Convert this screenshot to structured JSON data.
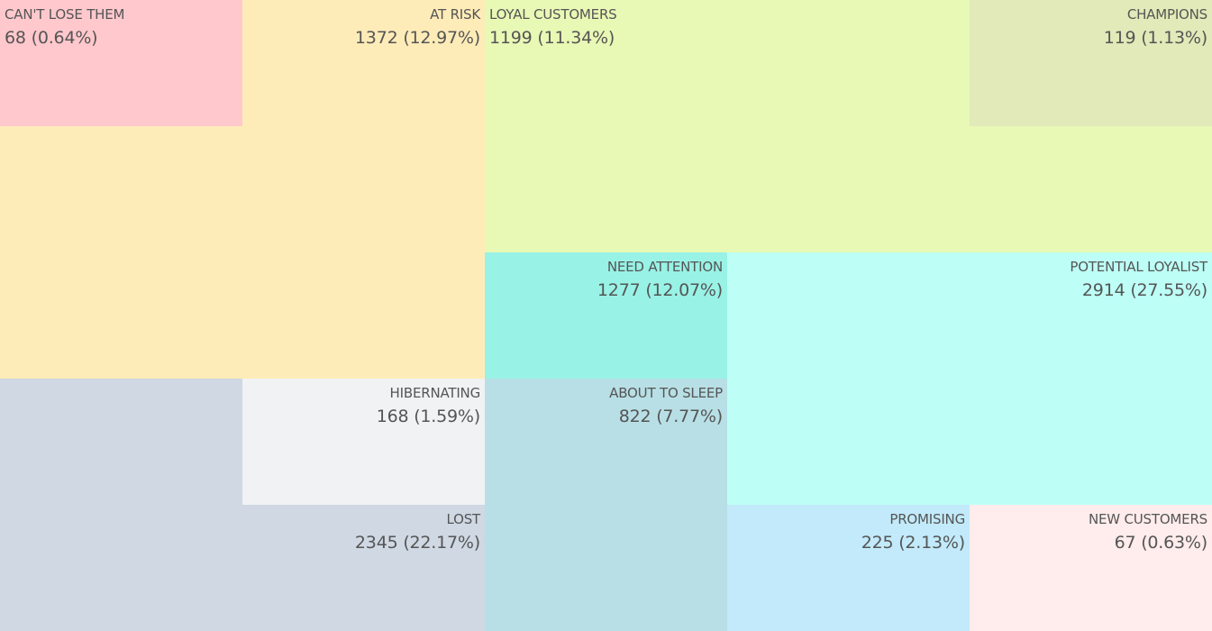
{
  "segments": [
    {
      "label": "CAN'T LOSE THEM",
      "value": "68 (0.64%)"
    },
    {
      "label": "AT RISK",
      "value": "1372 (12.97%)"
    },
    {
      "label": "LOYAL CUSTOMERS",
      "value": "1199 (11.34%)"
    },
    {
      "label": "CHAMPIONS",
      "value": "119 (1.13%)"
    },
    {
      "label": "NEED ATTENTION",
      "value": "1277 (12.07%)"
    },
    {
      "label": "POTENTIAL LOYALIST",
      "value": "2914 (27.55%)"
    },
    {
      "label": "HIBERNATING",
      "value": "168 (1.59%)"
    },
    {
      "label": "ABOUT TO SLEEP",
      "value": "822 (7.77%)"
    },
    {
      "label": "LOST",
      "value": "2345 (22.17%)"
    },
    {
      "label": "PROMISING",
      "value": "225 (2.13%)"
    },
    {
      "label": "NEW CUSTOMERS",
      "value": "67 (0.63%)"
    }
  ]
}
